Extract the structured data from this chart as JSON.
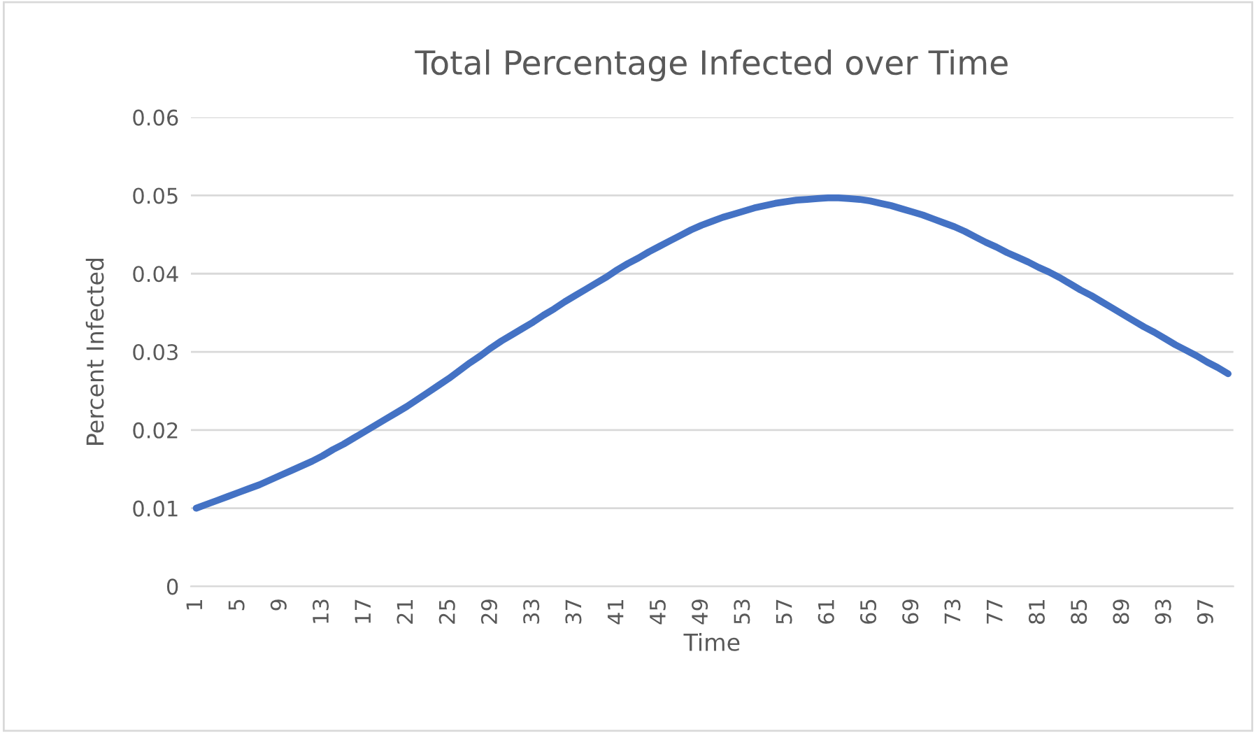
{
  "chart_data": {
    "type": "line",
    "title": "Total Percentage Infected over Time",
    "xlabel": "Time",
    "ylabel": "Percent Infected",
    "categories": [
      "1",
      null,
      null,
      null,
      "5",
      null,
      null,
      null,
      "9",
      null,
      null,
      null,
      "13",
      null,
      null,
      null,
      "17",
      null,
      null,
      null,
      "21",
      null,
      null,
      null,
      "25",
      null,
      null,
      null,
      "29",
      null,
      null,
      null,
      "33",
      null,
      null,
      null,
      "37",
      null,
      null,
      null,
      "41",
      null,
      null,
      null,
      "45",
      null,
      null,
      null,
      "49",
      null,
      null,
      null,
      "53",
      null,
      null,
      null,
      "57",
      null,
      null,
      null,
      "61",
      null,
      null,
      null,
      "65",
      null,
      null,
      null,
      "69",
      null,
      null,
      null,
      "73",
      null,
      null,
      null,
      "77",
      null,
      null,
      null,
      "81",
      null,
      null,
      null,
      "85",
      null,
      null,
      null,
      "89",
      null,
      null,
      null,
      "93",
      null,
      null,
      null,
      "97",
      null,
      null
    ],
    "series": [
      {
        "color": "#4472c4",
        "values": [
          0.01,
          0.0105,
          0.011,
          0.0115,
          0.012,
          0.0125,
          0.013,
          0.0136,
          0.0142,
          0.0148,
          0.0154,
          0.016,
          0.0167,
          0.0175,
          0.0182,
          0.019,
          0.0198,
          0.0206,
          0.0214,
          0.0222,
          0.023,
          0.0239,
          0.0248,
          0.0257,
          0.0266,
          0.0276,
          0.0286,
          0.0295,
          0.0305,
          0.0314,
          0.0322,
          0.033,
          0.0338,
          0.0347,
          0.0355,
          0.0364,
          0.0372,
          0.038,
          0.0388,
          0.0396,
          0.0405,
          0.0413,
          0.042,
          0.0428,
          0.0435,
          0.0442,
          0.0449,
          0.0456,
          0.0462,
          0.0467,
          0.0472,
          0.0476,
          0.048,
          0.0484,
          0.0487,
          0.049,
          0.0492,
          0.0494,
          0.0495,
          0.0496,
          0.0497,
          0.0497,
          0.0496,
          0.0495,
          0.0493,
          0.049,
          0.0487,
          0.0483,
          0.0479,
          0.0475,
          0.047,
          0.0465,
          0.046,
          0.0454,
          0.0447,
          0.044,
          0.0434,
          0.0427,
          0.0421,
          0.0415,
          0.0408,
          0.0402,
          0.0395,
          0.0387,
          0.0379,
          0.0372,
          0.0364,
          0.0356,
          0.0348,
          0.034,
          0.0332,
          0.0325,
          0.0317,
          0.0309,
          0.0302,
          0.0295,
          0.0287,
          0.028,
          0.0272
        ]
      }
    ],
    "ylim": [
      0,
      0.06
    ],
    "yticks": [
      0,
      0.01,
      0.02,
      0.03,
      0.04,
      0.05,
      0.06
    ],
    "grid": "y",
    "marker": "none",
    "line_style": "solid"
  }
}
